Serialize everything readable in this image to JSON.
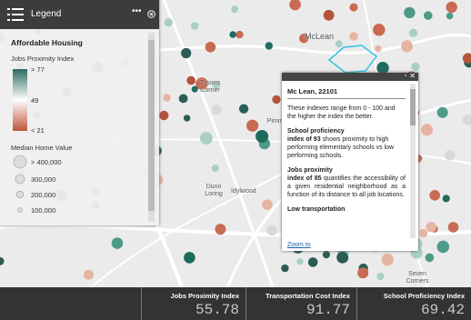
{
  "map_labels": [
    "McLean",
    "Tysons Corner",
    "Pimmit Hills",
    "Dunn Loring",
    "Idylwood",
    "Seven Corners"
  ],
  "legend": {
    "title": "Legend",
    "layer": "Affordable Housing",
    "jobs_index": {
      "title": "Jobs Proximity Index",
      "high": "> 77",
      "mid": "49",
      "low": "< 21"
    },
    "home_value": {
      "title": "Median Home Value",
      "items": [
        "> 400,000",
        "300,000",
        "200,000",
        "100,000"
      ]
    }
  },
  "popup": {
    "title": "Mc Lean, 22101",
    "intro": "These indexes range from 0 - 100 and the higher the index the better.",
    "school": {
      "heading": "School proficiency",
      "lead": "index of",
      "value": "93",
      "rest": "shows proximity to high performing elementary schools vs low performing schools."
    },
    "jobs": {
      "heading": "Jobs proximity",
      "lead": "index of",
      "value": "85",
      "rest": "quantifies the accessibility of a given residential neighborhood as a function of its distance to all job locations."
    },
    "transport": {
      "heading": "Low transportation"
    },
    "link": "Zoom to"
  },
  "stats": [
    {
      "label": "Jobs Proximity Index",
      "value": "55.78"
    },
    {
      "label": "Transportation Cost Index",
      "value": "91.77"
    },
    {
      "label": "School Proficiency Index",
      "value": "69.42"
    }
  ]
}
